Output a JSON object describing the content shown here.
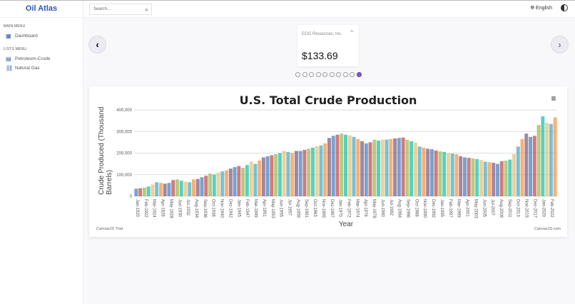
{
  "sidebar": {
    "brand": "Oil Atlas",
    "main_menu": "MAIN MENU",
    "lists_menu": "LISTS MENU",
    "items": [
      {
        "label": "Dashboard",
        "icon": "dashboard-icon"
      },
      {
        "label": "Petroleum-Crude",
        "icon": "barrel-icon"
      },
      {
        "label": "Natural Gas",
        "icon": "gas-tower-icon"
      }
    ]
  },
  "header": {
    "search_placeholder": "Search...",
    "language": "English"
  },
  "carousel": {
    "company": "EOG Resources, Inc.",
    "price": "$133.69",
    "slides": 10,
    "active_slide": 10
  },
  "colors": {
    "brand": "#2f55b8",
    "active_dot": "#7a5cc7"
  },
  "chart_data": {
    "type": "bar",
    "title": "U.S. Total Crude Production",
    "xlabel": "Year",
    "ylabel": "Crude Produced (Thousand Barrels)",
    "ylim": [
      0,
      400000
    ],
    "yticks": [
      "0",
      "100,000",
      "200,000",
      "300,000",
      "400,000"
    ],
    "grid": "horizontal",
    "xticks": [
      "Jan-1920",
      "Feb-1922",
      "Mar-1924",
      "Apr-1926",
      "May-1928",
      "Jun-1930",
      "Jul-1932",
      "Aug-1934",
      "Sep-1936",
      "Oct-1938",
      "Nov-1940",
      "Dec-1942",
      "Jan-1945",
      "Feb-1947",
      "Mar-1949",
      "Apr-1951",
      "May-1953",
      "Jun-1955",
      "Jul-1957",
      "Aug-1959",
      "Sep-1961",
      "Oct-1963",
      "Nov-1965",
      "Dec-1967",
      "Jan-1970",
      "Feb-1972",
      "Mar-1974",
      "Apr-1976",
      "May-1978",
      "Jun-1980",
      "Jul-1982",
      "Aug-1984",
      "Sep-1986",
      "Oct-1988",
      "Nov-1990",
      "Dec-1992",
      "Jan-1995",
      "Feb-1997",
      "Mar-1999",
      "Apr-2001",
      "May-2003",
      "Jun-2005",
      "Jul-2007",
      "Aug-2009",
      "Sep-2011",
      "Oct-2013",
      "Nov-2015",
      "Dec-2017",
      "Jan-2020",
      "Feb-2022"
    ],
    "x_start_year": 1920,
    "values": [
      35000,
      37000,
      40000,
      45000,
      55000,
      65000,
      62000,
      58000,
      62000,
      75000,
      78000,
      72000,
      68000,
      65000,
      78000,
      80000,
      88000,
      95000,
      105000,
      100000,
      110000,
      115000,
      120000,
      128000,
      135000,
      140000,
      132000,
      145000,
      160000,
      150000,
      165000,
      180000,
      185000,
      190000,
      195000,
      200000,
      210000,
      205000,
      200000,
      210000,
      210000,
      215000,
      220000,
      225000,
      232000,
      235000,
      245000,
      270000,
      280000,
      285000,
      290000,
      285000,
      282000,
      275000,
      265000,
      255000,
      245000,
      250000,
      262000,
      258000,
      262000,
      262000,
      265000,
      268000,
      270000,
      272000,
      262000,
      255000,
      248000,
      230000,
      225000,
      220000,
      218000,
      212000,
      208000,
      205000,
      200000,
      198000,
      195000,
      185000,
      180000,
      178000,
      175000,
      172000,
      168000,
      160000,
      158000,
      155000,
      150000,
      162000,
      165000,
      170000,
      195000,
      230000,
      265000,
      290000,
      275000,
      280000,
      330000,
      370000,
      340000,
      335000,
      365000
    ],
    "palette": [
      "#4F81BC",
      "#C0504E",
      "#9BBB58",
      "#23BFAA",
      "#E5C17A",
      "#4AACC5",
      "#F79647",
      "#7F6084"
    ],
    "credit_left": "CanvasJS Trial",
    "credit_right": "CanvasJS.com",
    "menu_icon": "hamburger-icon"
  }
}
